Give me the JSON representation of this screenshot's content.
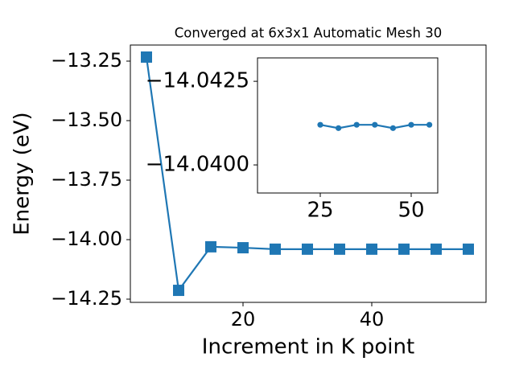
{
  "chart_data": [
    {
      "type": "line",
      "title": "Converged at 6x3x1 Automatic Mesh 30",
      "xlabel": "Increment in K point",
      "ylabel": "Energy (eV)",
      "x": [
        5,
        10,
        15,
        20,
        25,
        30,
        35,
        40,
        45,
        50,
        55
      ],
      "series": [
        {
          "color": "#1f77b4",
          "marker": "square",
          "values": [
            -13.233,
            -14.213,
            -14.03,
            -14.034,
            -14.04,
            -14.04,
            -14.04,
            -14.04,
            -14.04,
            -14.04,
            -14.04
          ]
        }
      ],
      "xlim": [
        2.5,
        57.75
      ],
      "xticks": [
        20,
        40
      ],
      "ylim": [
        -14.2635,
        -13.1824
      ],
      "yticks": [
        {
          "value": -13.25,
          "label": "−13.25"
        },
        {
          "value": -13.5,
          "label": "−13.50"
        },
        {
          "value": -13.75,
          "label": "−13.75"
        },
        {
          "value": -14.0,
          "label": "−14.00"
        },
        {
          "value": -14.25,
          "label": "−14.25"
        }
      ]
    },
    {
      "type": "line",
      "x": [
        25,
        30,
        35,
        40,
        45,
        50,
        55
      ],
      "series": [
        {
          "color": "#1f77b4",
          "marker": "circle",
          "values": [
            -14.0412,
            -14.0411,
            -14.0412,
            -14.0412,
            -14.0411,
            -14.0412,
            -14.0412
          ]
        }
      ],
      "xlim": [
        7.74,
        57.3
      ],
      "xticks": [
        25,
        50
      ],
      "ylim": [
        -14.03916,
        -14.0432
      ],
      "yticks": [
        {
          "value": -14.0425,
          "label": "−14.0425"
        },
        {
          "value": -14.04,
          "label": "−14.0400"
        }
      ]
    }
  ]
}
